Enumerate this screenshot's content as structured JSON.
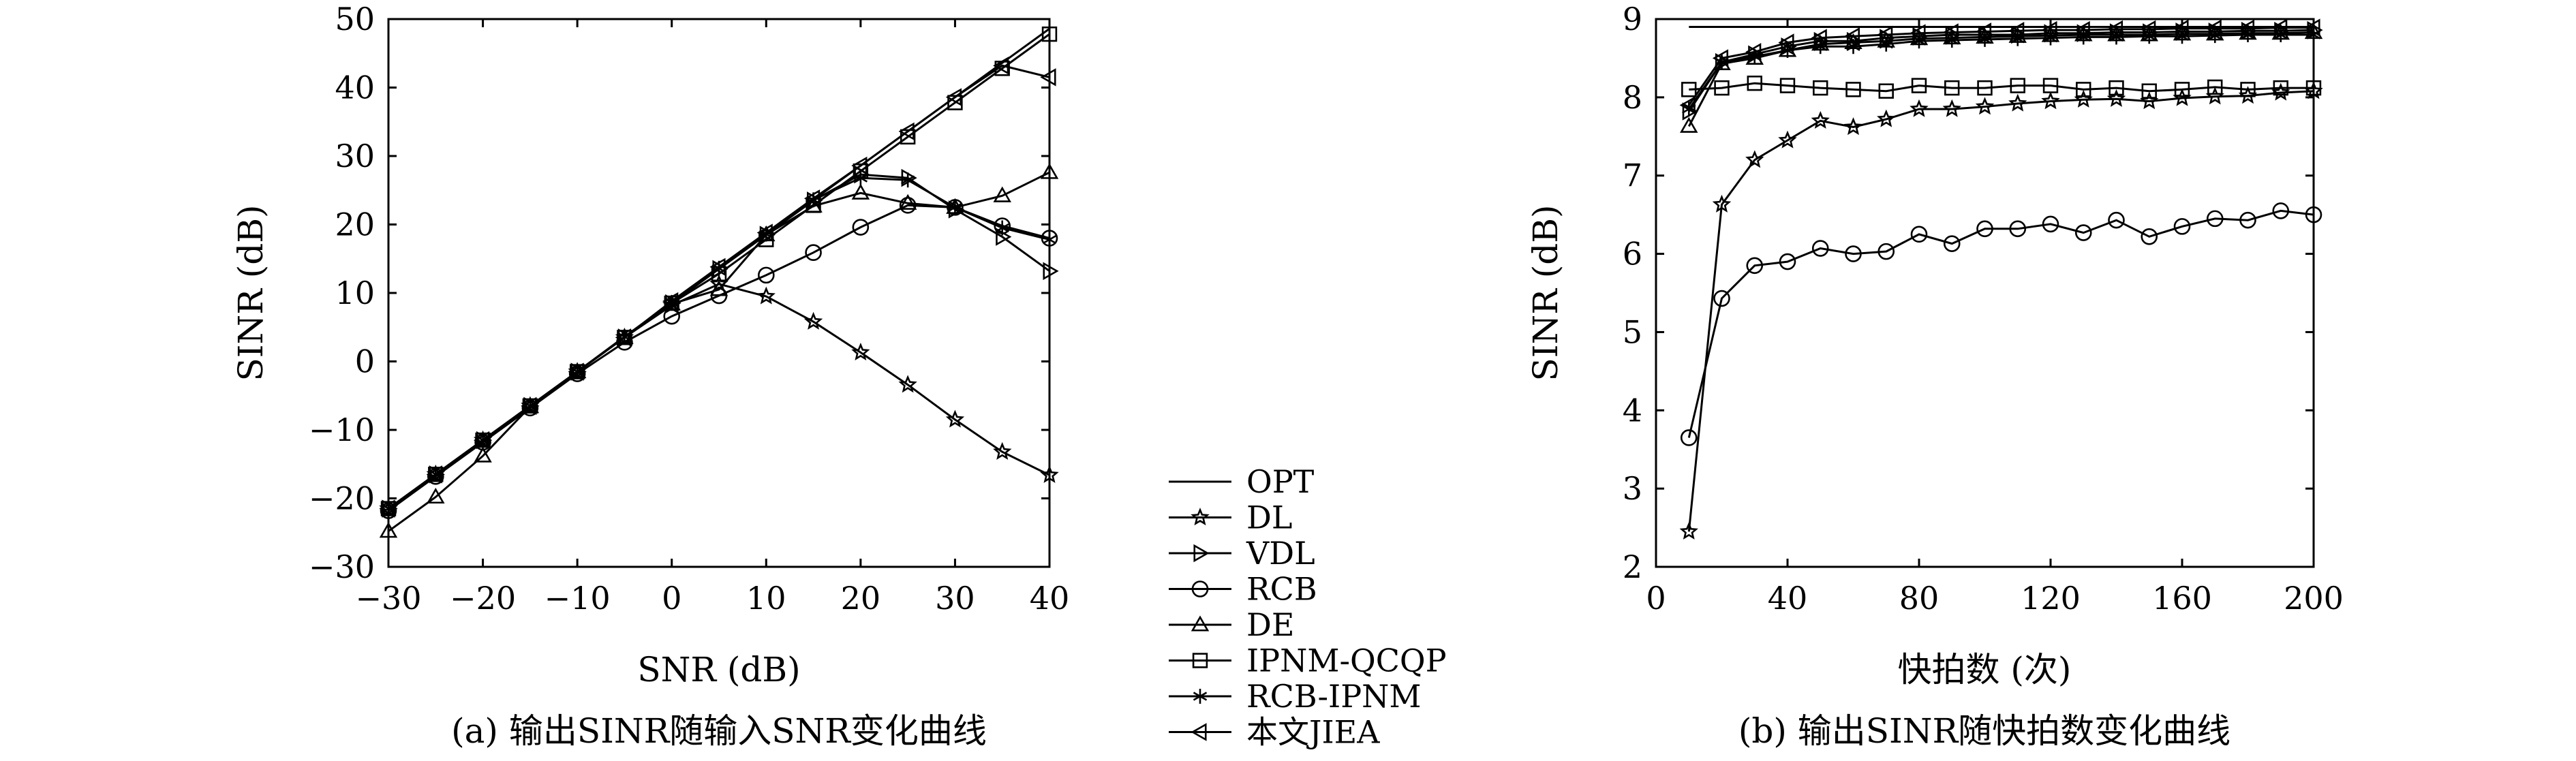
{
  "legend": {
    "entries": [
      {
        "name": "OPT",
        "marker": "none"
      },
      {
        "name": "DL",
        "marker": "star"
      },
      {
        "name": "VDL",
        "marker": "tri-right"
      },
      {
        "name": "RCB",
        "marker": "circle"
      },
      {
        "name": "DE",
        "marker": "tri-up"
      },
      {
        "name": "IPNM-QCQP",
        "marker": "square"
      },
      {
        "name": "RCB-IPNM",
        "marker": "asterisk"
      },
      {
        "name": "本文JIEA",
        "marker": "tri-left"
      }
    ]
  },
  "chart_data": [
    {
      "type": "line",
      "caption": "(a) 输出SINR随输入SNR变化曲线",
      "xlabel": "SNR (dB)",
      "ylabel": "SINR (dB)",
      "xlim": [
        -30,
        40
      ],
      "ylim": [
        -30,
        50
      ],
      "xticks": [
        -30,
        -20,
        -10,
        0,
        10,
        20,
        30,
        40
      ],
      "yticks": [
        -30,
        -20,
        -10,
        0,
        10,
        20,
        30,
        40,
        50
      ],
      "xtick_labels": [
        "−30",
        "−20",
        "−10",
        "0",
        "10",
        "20",
        "30",
        "40"
      ],
      "ytick_labels": [
        "−30",
        "−20",
        "−10",
        "0",
        "10",
        "20",
        "30",
        "40",
        "50"
      ],
      "grid": false,
      "x": [
        -30,
        -25,
        -20,
        -15,
        -10,
        -5,
        0,
        5,
        10,
        15,
        20,
        25,
        30,
        35,
        40
      ],
      "series": [
        {
          "name": "OPT",
          "marker": "none",
          "values": [
            -21.5,
            -16.5,
            -11.5,
            -6.5,
            -1.5,
            3.6,
            8.6,
            13.6,
            18.6,
            23.6,
            28.6,
            33.6,
            38.6,
            43.6,
            48.6
          ]
        },
        {
          "name": "DL",
          "marker": "star",
          "values": [
            -21.5,
            -16.5,
            -11.5,
            -6.5,
            -1.5,
            3.5,
            8.2,
            11.3,
            9.5,
            5.8,
            1.3,
            -3.4,
            -8.5,
            -13.2,
            -16.6
          ]
        },
        {
          "name": "VDL",
          "marker": "tri-right",
          "values": [
            -21.5,
            -16.5,
            -11.5,
            -6.5,
            -1.5,
            3.5,
            8.5,
            13.5,
            18.5,
            23.5,
            27.3,
            26.8,
            22.2,
            18.2,
            13.2
          ]
        },
        {
          "name": "RCB",
          "marker": "circle",
          "values": [
            -21.8,
            -16.8,
            -11.8,
            -6.8,
            -1.8,
            2.8,
            6.6,
            9.6,
            12.6,
            15.9,
            19.6,
            22.8,
            22.5,
            19.8,
            18.0
          ]
        },
        {
          "name": "DE",
          "marker": "tri-up",
          "values": [
            -24.8,
            -19.8,
            -13.8,
            -6.6,
            -1.5,
            3.5,
            8.4,
            10.5,
            18.5,
            22.7,
            24.6,
            23.1,
            22.5,
            24.2,
            27.6
          ]
        },
        {
          "name": "IPNM-QCQP",
          "marker": "square",
          "values": [
            -21.5,
            -16.5,
            -11.5,
            -6.5,
            -1.5,
            3.5,
            8.5,
            12.8,
            17.8,
            22.8,
            27.8,
            32.8,
            37.8,
            42.8,
            47.8
          ]
        },
        {
          "name": "RCB-IPNM",
          "marker": "asterisk",
          "values": [
            -21.5,
            -16.5,
            -11.5,
            -6.5,
            -1.5,
            3.6,
            8.6,
            13.6,
            18.6,
            23.6,
            26.8,
            26.5,
            22.5,
            19.5,
            17.8
          ]
        },
        {
          "name": "本文JIEA",
          "marker": "tri-left",
          "values": [
            -21.5,
            -16.5,
            -11.5,
            -6.5,
            -1.5,
            3.5,
            8.8,
            13.8,
            18.8,
            23.8,
            28.6,
            33.6,
            38.6,
            43.2,
            41.5
          ]
        }
      ]
    },
    {
      "type": "line",
      "caption": "(b) 输出SINR随快拍数变化曲线",
      "xlabel": "快拍数 (次)",
      "ylabel": "SINR (dB)",
      "xlim": [
        0,
        200
      ],
      "ylim": [
        2,
        9
      ],
      "xticks": [
        0,
        40,
        80,
        120,
        160,
        200
      ],
      "yticks": [
        2,
        3,
        4,
        5,
        6,
        7,
        8,
        9
      ],
      "xtick_labels": [
        "0",
        "40",
        "80",
        "120",
        "160",
        "200"
      ],
      "ytick_labels": [
        "2",
        "3",
        "4",
        "5",
        "6",
        "7",
        "8",
        "9"
      ],
      "grid": false,
      "x": [
        10,
        20,
        30,
        40,
        50,
        60,
        70,
        80,
        90,
        100,
        110,
        120,
        130,
        140,
        150,
        160,
        170,
        180,
        190,
        200
      ],
      "series": [
        {
          "name": "OPT",
          "marker": "none",
          "values": [
            8.9,
            8.9,
            8.9,
            8.9,
            8.9,
            8.9,
            8.9,
            8.9,
            8.9,
            8.9,
            8.9,
            8.9,
            8.9,
            8.9,
            8.9,
            8.9,
            8.9,
            8.9,
            8.9,
            8.9
          ]
        },
        {
          "name": "DL",
          "marker": "star",
          "values": [
            2.45,
            6.63,
            7.2,
            7.45,
            7.7,
            7.62,
            7.72,
            7.85,
            7.85,
            7.88,
            7.92,
            7.95,
            7.97,
            7.98,
            7.95,
            7.99,
            8.01,
            8.02,
            8.06,
            8.08
          ]
        },
        {
          "name": "VDL",
          "marker": "tri-right",
          "values": [
            7.82,
            8.45,
            8.55,
            8.65,
            8.72,
            8.72,
            8.76,
            8.78,
            8.8,
            8.8,
            8.8,
            8.82,
            8.82,
            8.83,
            8.83,
            8.84,
            8.84,
            8.85,
            8.85,
            8.86
          ]
        },
        {
          "name": "RCB",
          "marker": "circle",
          "values": [
            3.65,
            5.43,
            5.85,
            5.9,
            6.07,
            6.0,
            6.03,
            6.25,
            6.13,
            6.32,
            6.32,
            6.38,
            6.27,
            6.43,
            6.22,
            6.35,
            6.45,
            6.43,
            6.55,
            6.5
          ]
        },
        {
          "name": "DE",
          "marker": "tri-up",
          "values": [
            7.63,
            8.43,
            8.5,
            8.6,
            8.68,
            8.7,
            8.72,
            8.75,
            8.76,
            8.77,
            8.78,
            8.79,
            8.8,
            8.8,
            8.8,
            8.81,
            8.81,
            8.82,
            8.82,
            8.83
          ]
        },
        {
          "name": "IPNM-QCQP",
          "marker": "square",
          "values": [
            8.1,
            8.12,
            8.18,
            8.15,
            8.12,
            8.1,
            8.08,
            8.15,
            8.12,
            8.12,
            8.15,
            8.15,
            8.1,
            8.12,
            8.08,
            8.1,
            8.13,
            8.1,
            8.12,
            8.12
          ]
        },
        {
          "name": "RCB-IPNM",
          "marker": "asterisk",
          "values": [
            7.85,
            8.45,
            8.52,
            8.6,
            8.65,
            8.65,
            8.68,
            8.72,
            8.73,
            8.74,
            8.75,
            8.76,
            8.77,
            8.77,
            8.78,
            8.78,
            8.79,
            8.8,
            8.8,
            8.8
          ]
        },
        {
          "name": "本文JIEA",
          "marker": "tri-left",
          "values": [
            7.9,
            8.5,
            8.58,
            8.7,
            8.76,
            8.78,
            8.8,
            8.82,
            8.83,
            8.84,
            8.85,
            8.86,
            8.86,
            8.87,
            8.87,
            8.88,
            8.88,
            8.88,
            8.89,
            8.89
          ]
        }
      ]
    }
  ]
}
